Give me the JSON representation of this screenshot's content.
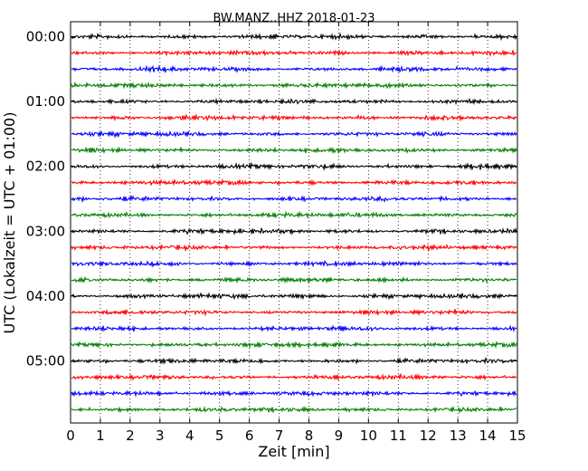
{
  "chart_data": {
    "type": "line",
    "title": "BW.MANZ..HHZ 2018-01-23",
    "xlabel": "Zeit  [min]",
    "ylabel": "UTC (Lokalzeit = UTC + 01:00)",
    "xlim": [
      0,
      15
    ],
    "x_ticks": [
      "0",
      "1",
      "2",
      "3",
      "4",
      "5",
      "6",
      "7",
      "8",
      "9",
      "10",
      "11",
      "12",
      "13",
      "14",
      "15"
    ],
    "y_ticks": [
      "00:00",
      "01:00",
      "02:00",
      "03:00",
      "04:00",
      "05:00"
    ],
    "grid": "vertical dotted",
    "colors": [
      "#000000",
      "#ff0000",
      "#0000ff",
      "#007f00"
    ],
    "traces_per_hour": 4,
    "trace_count": 24
  }
}
